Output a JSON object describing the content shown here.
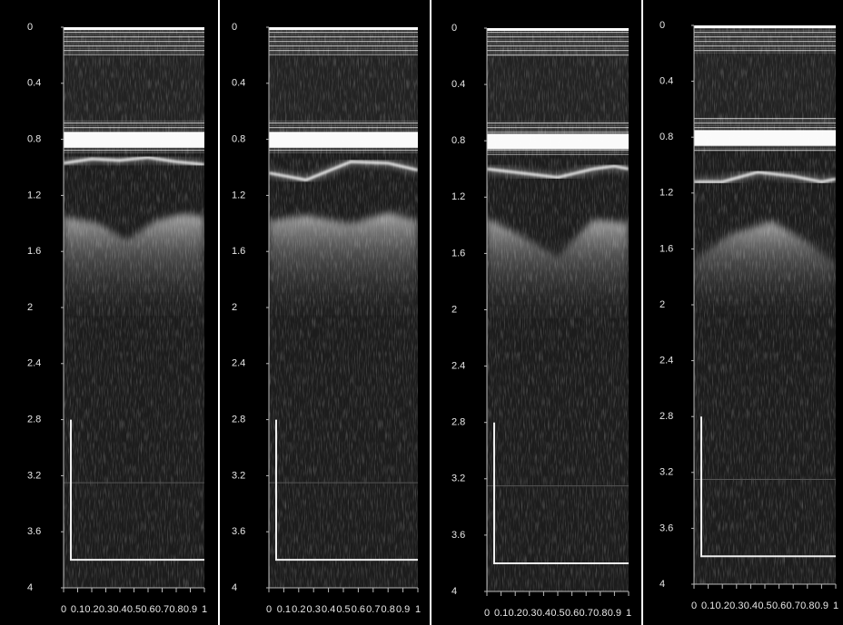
{
  "chart_data": [
    {
      "type": "image",
      "ylim": [
        0,
        4
      ],
      "yticks": [
        0,
        0.4,
        0.8,
        1.2,
        1.6,
        2,
        2.4,
        2.8,
        3.2,
        3.6,
        4
      ],
      "xlim": [
        0,
        1
      ],
      "xticks": [
        0,
        0.1,
        0.2,
        0.3,
        0.4,
        0.5,
        0.6,
        0.7,
        0.8,
        0.9,
        1
      ]
    },
    {
      "type": "image",
      "ylim": [
        0,
        4
      ],
      "yticks": [
        0,
        0.4,
        0.8,
        1.2,
        1.6,
        2,
        2.4,
        2.8,
        3.2,
        3.6,
        4
      ],
      "xlim": [
        0,
        1
      ],
      "xticks": [
        0,
        0.1,
        0.2,
        0.3,
        0.4,
        0.5,
        0.6,
        0.7,
        0.8,
        0.9,
        1
      ]
    },
    {
      "type": "image",
      "ylim": [
        0,
        4
      ],
      "yticks": [
        0,
        0.4,
        0.8,
        1.2,
        1.6,
        2,
        2.4,
        2.8,
        3.2,
        3.6,
        4
      ],
      "xlim": [
        0,
        1
      ],
      "xticks": [
        0,
        0.1,
        0.2,
        0.3,
        0.4,
        0.5,
        0.6,
        0.7,
        0.8,
        0.9,
        1
      ]
    },
    {
      "type": "image",
      "ylim": [
        0,
        4
      ],
      "yticks": [
        0,
        0.4,
        0.8,
        1.2,
        1.6,
        2,
        2.4,
        2.8,
        3.2,
        3.6,
        4
      ],
      "xlim": [
        0,
        1
      ],
      "xticks": [
        0,
        0.1,
        0.2,
        0.3,
        0.4,
        0.5,
        0.6,
        0.7,
        0.8,
        0.9,
        1
      ]
    }
  ]
}
